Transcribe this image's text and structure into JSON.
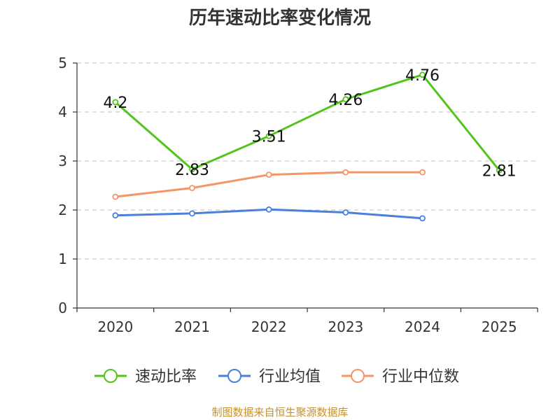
{
  "title": "历年速动比率变化情况",
  "source_note": "制图数据来自恒生聚源数据库",
  "chart_data": {
    "type": "line",
    "categories": [
      "2020",
      "2021",
      "2022",
      "2023",
      "2024",
      "2025"
    ],
    "ylim": [
      0,
      5
    ],
    "yticks": [
      0,
      1,
      2,
      3,
      4,
      5
    ],
    "grid": true,
    "legend_position": "bottom",
    "series": [
      {
        "name": "速动比率",
        "color": "#52c41a",
        "values": [
          4.2,
          2.83,
          3.51,
          4.26,
          4.76,
          2.81
        ],
        "labels": [
          "4.2",
          "2.83",
          "3.51",
          "4.26",
          "4.76",
          "2.81"
        ]
      },
      {
        "name": "行业均值",
        "color": "#4a7fdc",
        "values": [
          1.89,
          1.93,
          2.01,
          1.95,
          1.83,
          null
        ]
      },
      {
        "name": "行业中位数",
        "color": "#f59566",
        "values": [
          2.27,
          2.45,
          2.72,
          2.77,
          2.77,
          null
        ]
      }
    ]
  }
}
